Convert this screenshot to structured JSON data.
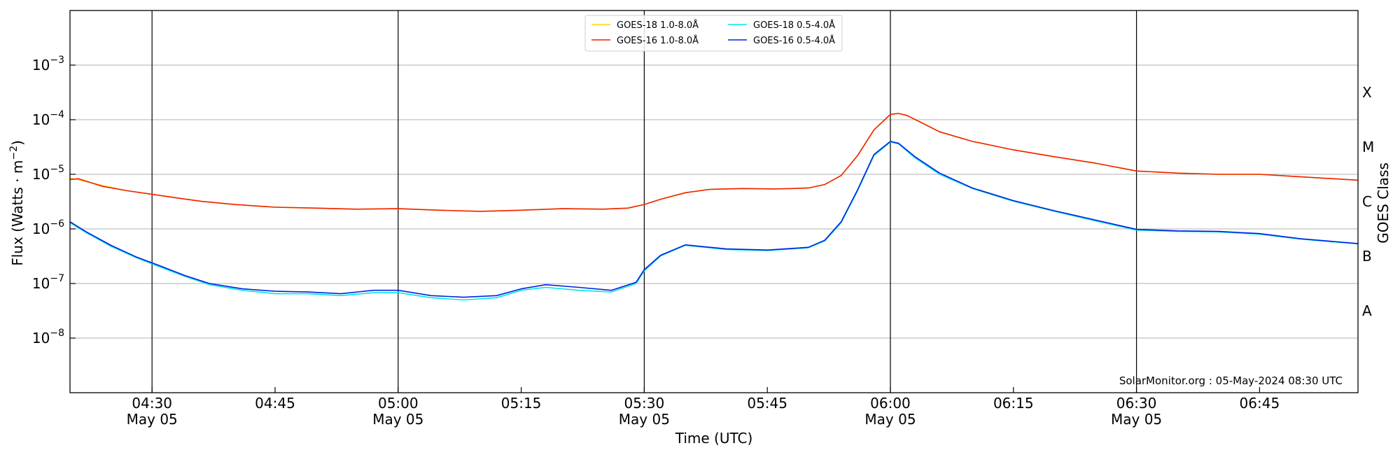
{
  "chart_data": {
    "type": "line",
    "xlabel": "Time (UTC)",
    "ylabel_base": "Flux (Watts · m",
    "ylabel_sup": "−2",
    "ylabel_close": ")",
    "y2label": "GOES Class",
    "xlim": [
      "04:20",
      "06:57"
    ],
    "ylim": [
      1e-09,
      0.01
    ],
    "yscale": "log",
    "grid": "horizontal",
    "legend_position": "top-center",
    "credit": "SolarMonitor.org : 05-May-2024 08:30 UTC",
    "x_ticks": [
      {
        "time": "04:30",
        "label": "04:30",
        "date": "May 05",
        "major": true
      },
      {
        "time": "04:45",
        "label": "04:45",
        "date": "",
        "major": false
      },
      {
        "time": "05:00",
        "label": "05:00",
        "date": "May 05",
        "major": true
      },
      {
        "time": "05:15",
        "label": "05:15",
        "date": "",
        "major": false
      },
      {
        "time": "05:30",
        "label": "05:30",
        "date": "May 05",
        "major": true
      },
      {
        "time": "05:45",
        "label": "05:45",
        "date": "",
        "major": false
      },
      {
        "time": "06:00",
        "label": "06:00",
        "date": "May 05",
        "major": true
      },
      {
        "time": "06:15",
        "label": "06:15",
        "date": "",
        "major": false
      },
      {
        "time": "06:30",
        "label": "06:30",
        "date": "May 05",
        "major": true
      },
      {
        "time": "06:45",
        "label": "06:45",
        "date": "",
        "major": false
      }
    ],
    "y_ticks": [
      {
        "value": 1e-08,
        "base": "10",
        "exp": "−8"
      },
      {
        "value": 1e-07,
        "base": "10",
        "exp": "−7"
      },
      {
        "value": 1e-06,
        "base": "10",
        "exp": "−6"
      },
      {
        "value": 1e-05,
        "base": "10",
        "exp": "−5"
      },
      {
        "value": 0.0001,
        "base": "10",
        "exp": "−4"
      },
      {
        "value": 0.001,
        "base": "10",
        "exp": "−3"
      }
    ],
    "goes_classes": [
      {
        "label": "A",
        "value": 3.16e-08
      },
      {
        "label": "B",
        "value": 3.16e-07
      },
      {
        "label": "C",
        "value": 3.16e-06
      },
      {
        "label": "M",
        "value": 3.16e-05
      },
      {
        "label": "X",
        "value": 0.000316
      }
    ],
    "series": [
      {
        "name": "GOES-18 1.0-8.0Å",
        "color": "#ffd700",
        "points": [
          [
            "04:20",
            8.5e-06
          ],
          [
            "04:21",
            8e-06
          ],
          [
            "04:24",
            6.2e-06
          ],
          [
            "04:27",
            5e-06
          ],
          [
            "04:30",
            4.3e-06
          ],
          [
            "04:33",
            3.7e-06
          ],
          [
            "04:36",
            3.2e-06
          ],
          [
            "04:40",
            2.8e-06
          ],
          [
            "04:45",
            2.5e-06
          ],
          [
            "04:50",
            2.4e-06
          ],
          [
            "04:55",
            2.3e-06
          ],
          [
            "05:00",
            2.35e-06
          ],
          [
            "05:05",
            2.2e-06
          ],
          [
            "05:10",
            2.1e-06
          ],
          [
            "05:15",
            2.2e-06
          ],
          [
            "05:20",
            2.35e-06
          ],
          [
            "05:25",
            2.3e-06
          ],
          [
            "05:28",
            2.4e-06
          ],
          [
            "05:30",
            2.8e-06
          ],
          [
            "05:32",
            3.5e-06
          ],
          [
            "05:35",
            4.6e-06
          ],
          [
            "05:38",
            5.3e-06
          ],
          [
            "05:42",
            5.5e-06
          ],
          [
            "05:46",
            5.4e-06
          ],
          [
            "05:50",
            5.6e-06
          ],
          [
            "05:52",
            6.5e-06
          ],
          [
            "05:54",
            9.5e-06
          ],
          [
            "05:56",
            2.2e-05
          ],
          [
            "05:58",
            6.5e-05
          ],
          [
            "06:00",
            0.000125
          ],
          [
            "06:01",
            0.00013
          ],
          [
            "06:02",
            0.00012
          ],
          [
            "06:04",
            8.5e-05
          ],
          [
            "06:06",
            6e-05
          ],
          [
            "06:10",
            4e-05
          ],
          [
            "06:15",
            2.8e-05
          ],
          [
            "06:20",
            2.1e-05
          ],
          [
            "06:25",
            1.6e-05
          ],
          [
            "06:30",
            1.15e-05
          ],
          [
            "06:35",
            1.05e-05
          ],
          [
            "06:40",
            1e-05
          ],
          [
            "06:45",
            1e-05
          ],
          [
            "06:50",
            9e-06
          ],
          [
            "06:57",
            7.8e-06
          ]
        ]
      },
      {
        "name": "GOES-18 0.5-4.0Å",
        "color": "#00e5ee",
        "points": [
          [
            "04:20",
            1.3e-06
          ],
          [
            "04:22",
            8.5e-07
          ],
          [
            "04:25",
            4.8e-07
          ],
          [
            "04:28",
            3e-07
          ],
          [
            "04:31",
            2e-07
          ],
          [
            "04:34",
            1.35e-07
          ],
          [
            "04:37",
            9.5e-08
          ],
          [
            "04:41",
            7.5e-08
          ],
          [
            "04:45",
            6.5e-08
          ],
          [
            "04:49",
            6.5e-08
          ],
          [
            "04:53",
            6e-08
          ],
          [
            "04:57",
            6.8e-08
          ],
          [
            "05:00",
            6.8e-08
          ],
          [
            "05:04",
            5.5e-08
          ],
          [
            "05:08",
            5e-08
          ],
          [
            "05:12",
            5.5e-08
          ],
          [
            "05:15",
            7.5e-08
          ],
          [
            "05:18",
            8.5e-08
          ],
          [
            "05:22",
            7.5e-08
          ],
          [
            "05:26",
            7e-08
          ],
          [
            "05:29",
            1e-07
          ],
          [
            "05:30",
            1.7e-07
          ],
          [
            "05:32",
            3.2e-07
          ],
          [
            "05:35",
            5e-07
          ],
          [
            "05:40",
            4.2e-07
          ],
          [
            "05:45",
            4e-07
          ],
          [
            "05:50",
            4.5e-07
          ],
          [
            "05:52",
            6e-07
          ],
          [
            "05:54",
            1.3e-06
          ],
          [
            "05:56",
            5e-06
          ],
          [
            "05:58",
            2.2e-05
          ],
          [
            "06:00",
            3.9e-05
          ],
          [
            "06:01",
            3.6e-05
          ],
          [
            "06:03",
            2e-05
          ],
          [
            "06:06",
            1e-05
          ],
          [
            "06:10",
            5.5e-06
          ],
          [
            "06:15",
            3.2e-06
          ],
          [
            "06:20",
            2.1e-06
          ],
          [
            "06:25",
            1.4e-06
          ],
          [
            "06:30",
            9.5e-07
          ],
          [
            "06:35",
            9e-07
          ],
          [
            "06:40",
            8.8e-07
          ],
          [
            "06:45",
            8e-07
          ],
          [
            "06:50",
            6.5e-07
          ],
          [
            "06:57",
            5.3e-07
          ]
        ]
      },
      {
        "name": "GOES-16 1.0-8.0Å",
        "color": "#ee2200",
        "points": [
          [
            "04:20",
            8e-06
          ],
          [
            "04:21",
            8.3e-06
          ],
          [
            "04:24",
            6e-06
          ],
          [
            "04:27",
            5e-06
          ],
          [
            "04:30",
            4.3e-06
          ],
          [
            "04:33",
            3.7e-06
          ],
          [
            "04:36",
            3.2e-06
          ],
          [
            "04:40",
            2.8e-06
          ],
          [
            "04:45",
            2.5e-06
          ],
          [
            "04:50",
            2.4e-06
          ],
          [
            "04:55",
            2.3e-06
          ],
          [
            "05:00",
            2.35e-06
          ],
          [
            "05:05",
            2.2e-06
          ],
          [
            "05:10",
            2.1e-06
          ],
          [
            "05:15",
            2.2e-06
          ],
          [
            "05:20",
            2.35e-06
          ],
          [
            "05:25",
            2.3e-06
          ],
          [
            "05:28",
            2.4e-06
          ],
          [
            "05:30",
            2.8e-06
          ],
          [
            "05:32",
            3.5e-06
          ],
          [
            "05:35",
            4.6e-06
          ],
          [
            "05:38",
            5.3e-06
          ],
          [
            "05:42",
            5.5e-06
          ],
          [
            "05:46",
            5.4e-06
          ],
          [
            "05:50",
            5.6e-06
          ],
          [
            "05:52",
            6.5e-06
          ],
          [
            "05:54",
            9.5e-06
          ],
          [
            "05:56",
            2.2e-05
          ],
          [
            "05:58",
            6.5e-05
          ],
          [
            "06:00",
            0.000125
          ],
          [
            "06:01",
            0.00013
          ],
          [
            "06:02",
            0.00012
          ],
          [
            "06:04",
            8.5e-05
          ],
          [
            "06:06",
            6e-05
          ],
          [
            "06:10",
            4e-05
          ],
          [
            "06:15",
            2.8e-05
          ],
          [
            "06:20",
            2.1e-05
          ],
          [
            "06:25",
            1.6e-05
          ],
          [
            "06:30",
            1.15e-05
          ],
          [
            "06:35",
            1.05e-05
          ],
          [
            "06:40",
            1e-05
          ],
          [
            "06:45",
            1e-05
          ],
          [
            "06:50",
            9e-06
          ],
          [
            "06:57",
            7.8e-06
          ]
        ]
      },
      {
        "name": "GOES-16 0.5-4.0Å",
        "color": "#0022dd",
        "points": [
          [
            "04:20",
            1.35e-06
          ],
          [
            "04:22",
            8.8e-07
          ],
          [
            "04:25",
            5e-07
          ],
          [
            "04:28",
            3.1e-07
          ],
          [
            "04:31",
            2.1e-07
          ],
          [
            "04:34",
            1.4e-07
          ],
          [
            "04:37",
            1e-07
          ],
          [
            "04:41",
            8e-08
          ],
          [
            "04:45",
            7.2e-08
          ],
          [
            "04:49",
            7e-08
          ],
          [
            "04:53",
            6.5e-08
          ],
          [
            "04:57",
            7.5e-08
          ],
          [
            "05:00",
            7.5e-08
          ],
          [
            "05:04",
            6e-08
          ],
          [
            "05:08",
            5.6e-08
          ],
          [
            "05:12",
            6e-08
          ],
          [
            "05:15",
            8e-08
          ],
          [
            "05:18",
            9.5e-08
          ],
          [
            "05:22",
            8.5e-08
          ],
          [
            "05:26",
            7.5e-08
          ],
          [
            "05:29",
            1.05e-07
          ],
          [
            "05:30",
            1.8e-07
          ],
          [
            "05:32",
            3.3e-07
          ],
          [
            "05:35",
            5.1e-07
          ],
          [
            "05:40",
            4.3e-07
          ],
          [
            "05:45",
            4.1e-07
          ],
          [
            "05:50",
            4.6e-07
          ],
          [
            "05:52",
            6.2e-07
          ],
          [
            "05:54",
            1.35e-06
          ],
          [
            "05:56",
            5.2e-06
          ],
          [
            "05:58",
            2.3e-05
          ],
          [
            "06:00",
            4e-05
          ],
          [
            "06:01",
            3.7e-05
          ],
          [
            "06:03",
            2.1e-05
          ],
          [
            "06:06",
            1.05e-05
          ],
          [
            "06:10",
            5.6e-06
          ],
          [
            "06:15",
            3.3e-06
          ],
          [
            "06:20",
            2.15e-06
          ],
          [
            "06:25",
            1.45e-06
          ],
          [
            "06:30",
            9.8e-07
          ],
          [
            "06:35",
            9.2e-07
          ],
          [
            "06:40",
            9e-07
          ],
          [
            "06:45",
            8.2e-07
          ],
          [
            "06:50",
            6.6e-07
          ],
          [
            "06:57",
            5.4e-07
          ]
        ]
      }
    ]
  }
}
